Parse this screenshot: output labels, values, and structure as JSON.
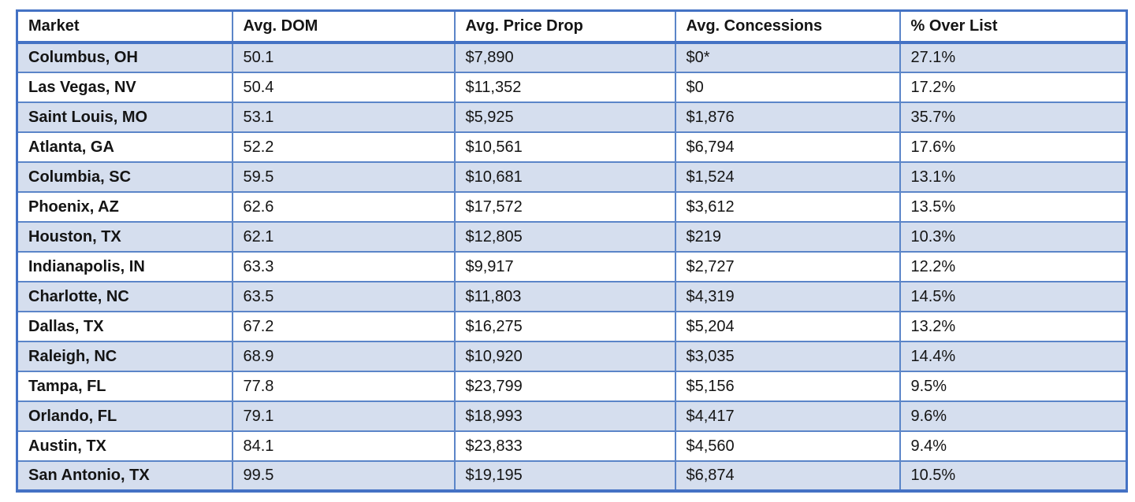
{
  "colors": {
    "border_blue": "#5b85c8",
    "thick_border_blue": "#4472c4",
    "shaded_row": "#d5deee",
    "text": "#141414"
  },
  "chart_data": {
    "type": "table",
    "columns": [
      "Market",
      "Avg. DOM",
      "Avg. Price Drop",
      "Avg. Concessions",
      "% Over List"
    ],
    "rows": [
      [
        "Columbus, OH",
        "50.1",
        "$7,890",
        "$0*",
        "27.1%"
      ],
      [
        "Las Vegas, NV",
        "50.4",
        "$11,352",
        "$0",
        "17.2%"
      ],
      [
        "Saint Louis, MO",
        "53.1",
        "$5,925",
        "$1,876",
        "35.7%"
      ],
      [
        "Atlanta, GA",
        "52.2",
        "$10,561",
        "$6,794",
        "17.6%"
      ],
      [
        "Columbia, SC",
        "59.5",
        "$10,681",
        "$1,524",
        "13.1%"
      ],
      [
        "Phoenix, AZ",
        "62.6",
        "$17,572",
        "$3,612",
        "13.5%"
      ],
      [
        "Houston, TX",
        "62.1",
        "$12,805",
        "$219",
        "10.3%"
      ],
      [
        "Indianapolis, IN",
        "63.3",
        "$9,917",
        "$2,727",
        "12.2%"
      ],
      [
        "Charlotte, NC",
        "63.5",
        "$11,803",
        "$4,319",
        "14.5%"
      ],
      [
        "Dallas, TX",
        "67.2",
        "$16,275",
        "$5,204",
        "13.2%"
      ],
      [
        "Raleigh, NC",
        "68.9",
        "$10,920",
        "$3,035",
        "14.4%"
      ],
      [
        "Tampa, FL",
        "77.8",
        "$23,799",
        "$5,156",
        "9.5%"
      ],
      [
        "Orlando, FL",
        "79.1",
        "$18,993",
        "$4,417",
        "9.6%"
      ],
      [
        "Austin, TX",
        "84.1",
        "$23,833",
        "$4,560",
        "9.4%"
      ],
      [
        "San Antonio, TX",
        "99.5",
        "$19,195",
        "$6,874",
        "10.5%"
      ]
    ]
  }
}
